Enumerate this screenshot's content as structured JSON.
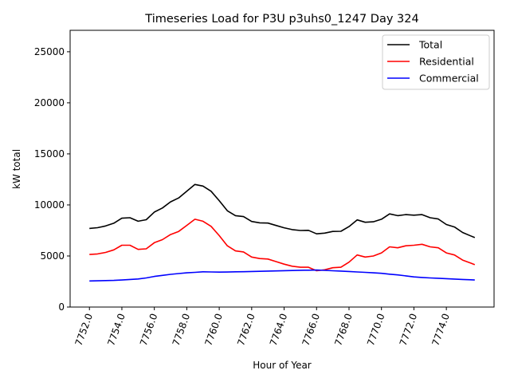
{
  "chart_data": {
    "type": "line",
    "title": "Timeseries Load for P3U p3uhs0_1247  Day 324",
    "xlabel": "Hour of Year",
    "ylabel": "kW total",
    "xlim": [
      7750.81,
      7776.94
    ],
    "ylim": [
      0,
      27100
    ],
    "xticks": [
      7752,
      7754,
      7756,
      7758,
      7760,
      7762,
      7764,
      7766,
      7768,
      7770,
      7772,
      7774
    ],
    "xtick_labels": [
      "7752.0",
      "7754.0",
      "7756.0",
      "7758.0",
      "7760.0",
      "7762.0",
      "7764.0",
      "7766.0",
      "7768.0",
      "7770.0",
      "7772.0",
      "7774.0"
    ],
    "yticks": [
      0,
      5000,
      10000,
      15000,
      20000,
      25000
    ],
    "ytick_labels": [
      "0",
      "5000",
      "10000",
      "15000",
      "20000",
      "25000"
    ],
    "grid": false,
    "legend": "top-right",
    "x": [
      7752,
      7752.5,
      7753,
      7753.5,
      7754,
      7754.5,
      7755,
      7755.5,
      7756,
      7756.5,
      7757,
      7757.5,
      7758,
      7758.5,
      7759,
      7759.5,
      7760,
      7760.5,
      7761,
      7761.5,
      7762,
      7762.5,
      7763,
      7763.5,
      7764,
      7764.5,
      7765,
      7765.5,
      7766,
      7766.5,
      7767,
      7767.5,
      7768,
      7768.5,
      7769,
      7769.5,
      7770,
      7770.5,
      7771,
      7771.5,
      7772,
      7772.5,
      7773,
      7773.5,
      7774,
      7774.5,
      7775,
      7775.5,
      7775.75
    ],
    "series": [
      {
        "name": "Total",
        "color": "#000000",
        "values": [
          7700,
          7770,
          7940,
          8210,
          8700,
          8750,
          8400,
          8550,
          9300,
          9700,
          10300,
          10680,
          11350,
          12000,
          11850,
          11340,
          10420,
          9430,
          8950,
          8860,
          8380,
          8250,
          8220,
          7990,
          7760,
          7580,
          7500,
          7510,
          7170,
          7240,
          7400,
          7420,
          7880,
          8540,
          8300,
          8350,
          8600,
          9120,
          8950,
          9050,
          9000,
          9050,
          8750,
          8620,
          8080,
          7840,
          7300,
          6970,
          6800
        ]
      },
      {
        "name": "Residential",
        "color": "#ff0000",
        "values": [
          5150,
          5200,
          5350,
          5600,
          6050,
          6050,
          5650,
          5700,
          6300,
          6600,
          7100,
          7400,
          8000,
          8600,
          8400,
          7900,
          7000,
          6000,
          5500,
          5400,
          4900,
          4750,
          4700,
          4450,
          4200,
          4000,
          3900,
          3900,
          3550,
          3650,
          3850,
          3900,
          4400,
          5100,
          4900,
          5000,
          5300,
          5900,
          5800,
          6000,
          6050,
          6150,
          5900,
          5800,
          5300,
          5100,
          4600,
          4300,
          4150
        ]
      },
      {
        "name": "Commercial",
        "color": "#0000ff",
        "values": [
          2550,
          2570,
          2590,
          2610,
          2650,
          2700,
          2750,
          2850,
          3000,
          3100,
          3200,
          3280,
          3350,
          3400,
          3450,
          3440,
          3420,
          3430,
          3450,
          3460,
          3480,
          3500,
          3520,
          3540,
          3560,
          3580,
          3600,
          3610,
          3620,
          3590,
          3550,
          3520,
          3480,
          3440,
          3400,
          3350,
          3300,
          3220,
          3150,
          3050,
          2950,
          2900,
          2850,
          2820,
          2780,
          2740,
          2700,
          2670,
          2650
        ]
      }
    ]
  }
}
